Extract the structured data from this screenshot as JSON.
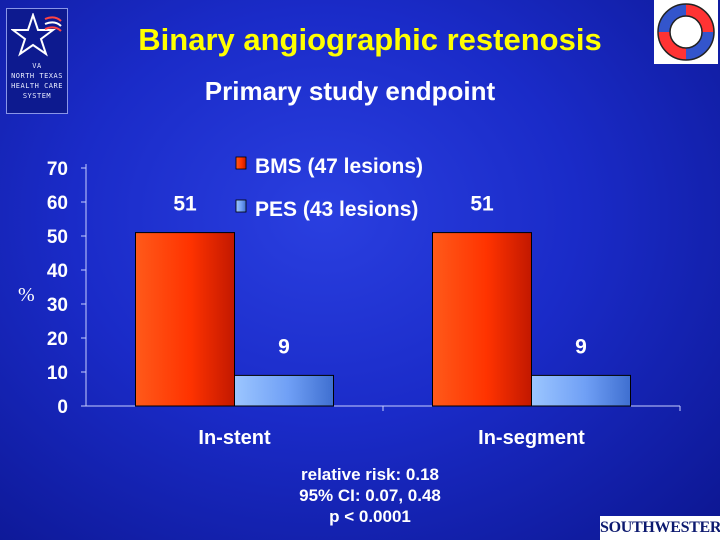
{
  "slide": {
    "title": "Binary angiographic restenosis",
    "subtitle": "Primary study endpoint",
    "y_unit": "%",
    "footnote": [
      "relative risk: 0.18",
      "95% CI: 0.07, 0.48",
      "p < 0.0001"
    ]
  },
  "logos": {
    "left_text": [
      "VA",
      "NORTH TEXAS",
      "HEALTH CARE",
      "SYSTEM"
    ],
    "bottom_right_text": "SOUTHWESTERN"
  },
  "chart_data": {
    "type": "bar",
    "title": "",
    "categories": [
      "In-stent",
      "In-segment"
    ],
    "series": [
      {
        "name": "BMS (47 lesions)",
        "values": [
          51,
          51
        ],
        "color": "#ff3300"
      },
      {
        "name": "PES (43 lesions)",
        "values": [
          9,
          9
        ],
        "color": "#7aaeff"
      }
    ],
    "ylim": [
      0,
      70
    ],
    "yticks": [
      0,
      10,
      20,
      30,
      40,
      50,
      60,
      70
    ],
    "ylabel": "%",
    "legend": "top-center",
    "grid": false,
    "data_labels": true
  }
}
